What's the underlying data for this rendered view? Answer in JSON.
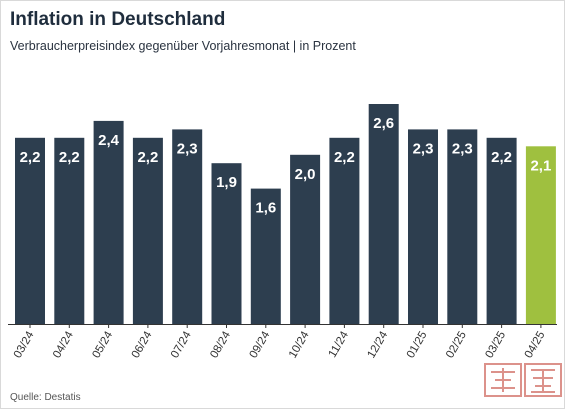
{
  "title": "Inflation in Deutschland",
  "subtitle": "Verbraucherpreisindex gegenüber Vorjahresmonat | in Prozent",
  "source": "Quelle: Destatis",
  "colors": {
    "bar": "#2d3e4f",
    "highlight": "#9fc03f",
    "label": "#ffffff",
    "axis": "#333333"
  },
  "chart_data": {
    "type": "bar",
    "categories": [
      "03/24",
      "04/24",
      "05/24",
      "06/24",
      "07/24",
      "08/24",
      "09/24",
      "10/24",
      "11/24",
      "12/24",
      "01/25",
      "02/25",
      "03/25",
      "04/25"
    ],
    "values": [
      2.2,
      2.2,
      2.4,
      2.2,
      2.3,
      1.9,
      1.6,
      2.0,
      2.2,
      2.6,
      2.3,
      2.3,
      2.2,
      2.1
    ],
    "labels": [
      "2,2",
      "2,2",
      "2,4",
      "2,2",
      "2,3",
      "1,9",
      "1,6",
      "2,0",
      "2,2",
      "2,6",
      "2,3",
      "2,3",
      "2,2",
      "2,1"
    ],
    "highlight_index": 13,
    "title": "Inflation in Deutschland",
    "xlabel": "",
    "ylabel": "",
    "ylim": [
      0,
      2.6
    ],
    "grid": false,
    "legend": "none"
  }
}
